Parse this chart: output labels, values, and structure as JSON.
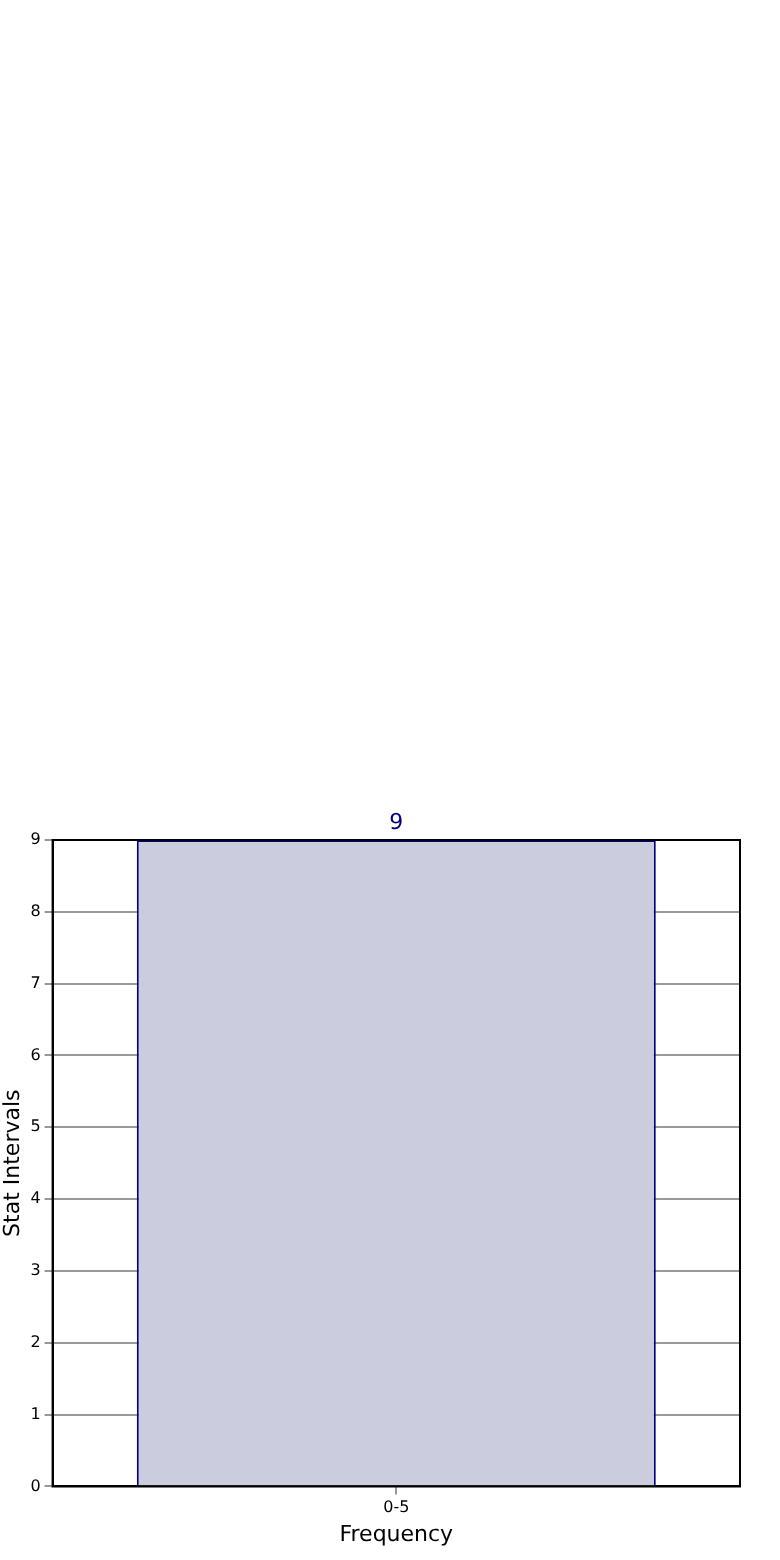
{
  "chart_data": {
    "type": "bar",
    "xlabel": "Frequency",
    "ylabel": "Stat Intervals",
    "categories": [
      "0-5"
    ],
    "values": [
      9
    ],
    "color": "#ccccdf",
    "data_labels": true,
    "ylim": [
      0,
      9
    ],
    "yticks": [
      0,
      1,
      2,
      3,
      4,
      5,
      6,
      7,
      8,
      9
    ],
    "grid": true,
    "legend": false
  }
}
